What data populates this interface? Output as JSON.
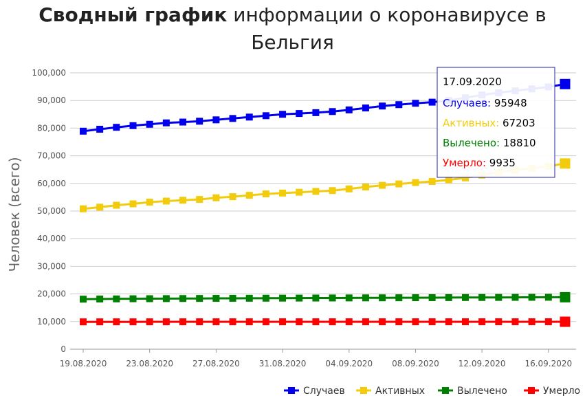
{
  "colors": {
    "cases": "#0000ee",
    "active": "#f2cc0c",
    "recovered": "#008000",
    "deaths": "#ff0000"
  },
  "title": {
    "bold": "Сводный график",
    "rest": "информации о коронавирусе в Бельгия"
  },
  "chart_data": {
    "type": "line",
    "ylabel": "Человек (всего)",
    "ylim": [
      0,
      100000
    ],
    "yticks": [
      "0",
      "10,000",
      "20,000",
      "30,000",
      "40,000",
      "50,000",
      "60,000",
      "70,000",
      "80,000",
      "90,000",
      "100,000"
    ],
    "xtick_labels": [
      "19.08.2020",
      "23.08.2020",
      "27.08.2020",
      "31.08.2020",
      "04.09.2020",
      "08.09.2020",
      "12.09.2020",
      "16.09.2020"
    ],
    "x": [
      "19.08.2020",
      "20.08.2020",
      "21.08.2020",
      "22.08.2020",
      "23.08.2020",
      "24.08.2020",
      "25.08.2020",
      "26.08.2020",
      "27.08.2020",
      "28.08.2020",
      "29.08.2020",
      "30.08.2020",
      "31.08.2020",
      "01.09.2020",
      "02.09.2020",
      "03.09.2020",
      "04.09.2020",
      "05.09.2020",
      "06.09.2020",
      "07.09.2020",
      "08.09.2020",
      "09.09.2020",
      "10.09.2020",
      "11.09.2020",
      "12.09.2020",
      "13.09.2020",
      "14.09.2020",
      "15.09.2020",
      "16.09.2020",
      "17.09.2020"
    ],
    "grid": true,
    "legend_position": "bottom-right",
    "series": [
      {
        "name": "Случаев",
        "color": "#0000ee",
        "values": [
          78900,
          79600,
          80300,
          80900,
          81400,
          81900,
          82200,
          82500,
          83000,
          83500,
          84000,
          84500,
          85000,
          85300,
          85600,
          86000,
          86600,
          87300,
          88000,
          88500,
          89000,
          89400,
          90000,
          91000,
          92000,
          92800,
          93500,
          94200,
          94900,
          95948
        ]
      },
      {
        "name": "Активных",
        "color": "#f2cc0c",
        "values": [
          50800,
          51400,
          52100,
          52600,
          53200,
          53600,
          53900,
          54200,
          54800,
          55200,
          55700,
          56200,
          56500,
          56800,
          57100,
          57400,
          58000,
          58700,
          59300,
          59800,
          60300,
          60700,
          61300,
          62000,
          63000,
          64000,
          64800,
          65500,
          66200,
          67203
        ]
      },
      {
        "name": "Вылечено",
        "color": "#008000",
        "values": [
          18100,
          18150,
          18200,
          18250,
          18280,
          18310,
          18340,
          18370,
          18400,
          18420,
          18440,
          18460,
          18480,
          18500,
          18520,
          18540,
          18560,
          18580,
          18600,
          18620,
          18640,
          18660,
          18680,
          18700,
          18720,
          18740,
          18760,
          18780,
          18800,
          18810
        ]
      },
      {
        "name": "Умерло",
        "color": "#ff0000",
        "values": [
          9900,
          9905,
          9910,
          9912,
          9914,
          9916,
          9918,
          9920,
          9921,
          9922,
          9923,
          9924,
          9925,
          9926,
          9927,
          9928,
          9928,
          9929,
          9929,
          9930,
          9930,
          9931,
          9931,
          9932,
          9932,
          9933,
          9933,
          9934,
          9934,
          9935
        ]
      }
    ]
  },
  "tooltip": {
    "date": "17.09.2020",
    "rows": [
      {
        "label": "Случаев:",
        "value": "95948",
        "color": "#0000ee"
      },
      {
        "label": "Активных:",
        "value": "67203",
        "color": "#f2cc0c"
      },
      {
        "label": "Вылечено:",
        "value": "18810",
        "color": "#008000"
      },
      {
        "label": "Умерло:",
        "value": "9935",
        "color": "#ff0000"
      }
    ]
  }
}
